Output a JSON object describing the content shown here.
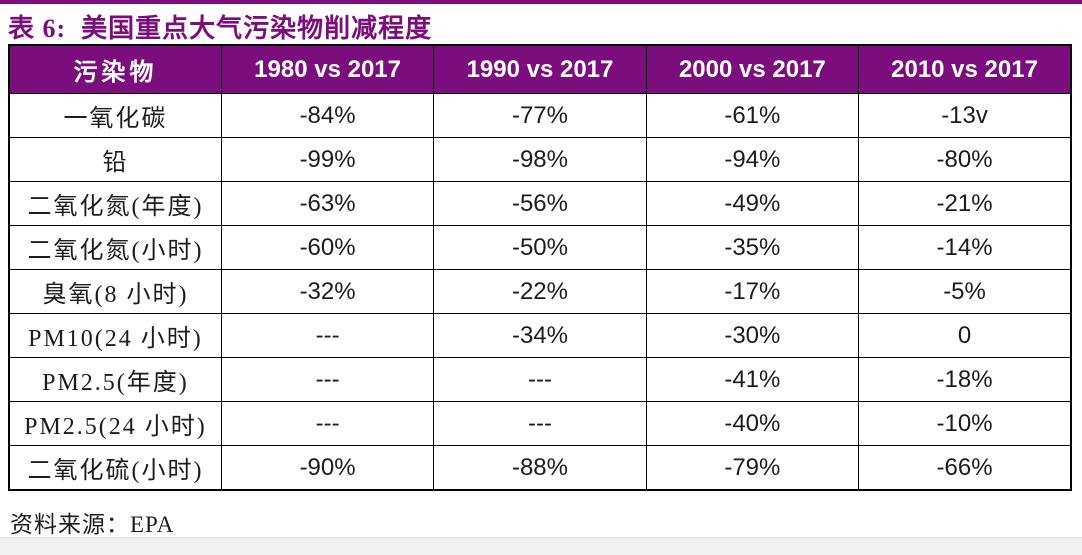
{
  "page": {
    "title": "表 6:  美国重点大气污染物削减程度",
    "source_label": "资料来源：EPA",
    "accent_color": "#7B0D7D",
    "grid_color": "#000000"
  },
  "table": {
    "columns": [
      "污染物",
      "1980 vs 2017",
      "1990 vs 2017",
      "2000 vs 2017",
      "2010 vs 2017"
    ],
    "rows": [
      {
        "name": "一氧化碳",
        "values": [
          "-84%",
          "-77%",
          "-61%",
          "-13v"
        ]
      },
      {
        "name": "铅",
        "values": [
          "-99%",
          "-98%",
          "-94%",
          "-80%"
        ]
      },
      {
        "name": "二氧化氮(年度)",
        "values": [
          "-63%",
          "-56%",
          "-49%",
          "-21%"
        ]
      },
      {
        "name": "二氧化氮(小时)",
        "values": [
          "-60%",
          "-50%",
          "-35%",
          "-14%"
        ]
      },
      {
        "name": "臭氧(8 小时)",
        "values": [
          "-32%",
          "-22%",
          "-17%",
          "-5%"
        ]
      },
      {
        "name": "PM10(24 小时)",
        "values": [
          "---",
          "-34%",
          "-30%",
          "0"
        ]
      },
      {
        "name": "PM2.5(年度)",
        "values": [
          "---",
          "---",
          "-41%",
          "-18%"
        ]
      },
      {
        "name": "PM2.5(24 小时)",
        "values": [
          "---",
          "---",
          "-40%",
          "-10%"
        ]
      },
      {
        "name": "二氧化硫(小时)",
        "values": [
          "-90%",
          "-88%",
          "-79%",
          "-66%"
        ]
      }
    ]
  }
}
